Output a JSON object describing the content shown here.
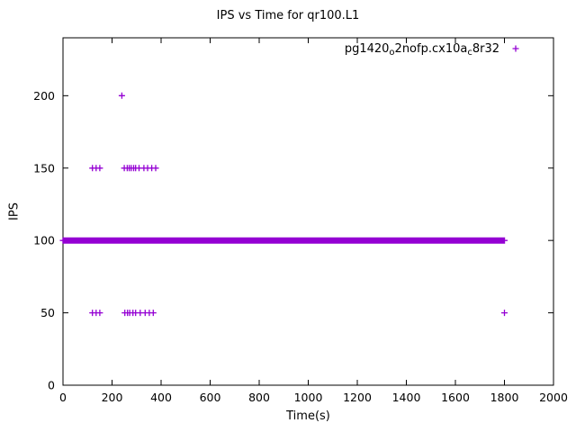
{
  "chart_data": {
    "type": "scatter",
    "title": "IPS vs Time for qr100.L1",
    "xlabel": "Time(s)",
    "ylabel": "IPS",
    "xlim": [
      0,
      2000
    ],
    "ylim": [
      0,
      240
    ],
    "xticks": [
      0,
      200,
      400,
      600,
      800,
      1000,
      1200,
      1400,
      1600,
      1800,
      2000
    ],
    "yticks": [
      0,
      50,
      100,
      150,
      200
    ],
    "grid": false,
    "marker": "plus",
    "marker_color": "#9400d3",
    "axis_color": "#000000",
    "legend": {
      "position": "top-right",
      "label_plain": "pg1420_o2nofp.cx10a_c8r32",
      "label_parts": [
        {
          "text": "pg1420",
          "sub": false
        },
        {
          "text": "o",
          "sub": true
        },
        {
          "text": "2nofp.cx10a",
          "sub": false
        },
        {
          "text": "c",
          "sub": true
        },
        {
          "text": "8r32",
          "sub": false
        }
      ]
    },
    "series": [
      {
        "name": "pg1420_o2nofp.cx10a_c8r32",
        "dense_band": {
          "y": 100,
          "x_from": 0,
          "x_to": 1800,
          "note": "continuous run of overlapping + markers at IPS=100"
        },
        "points": [
          [
            120,
            150
          ],
          [
            135,
            150
          ],
          [
            150,
            150
          ],
          [
            250,
            150
          ],
          [
            262,
            150
          ],
          [
            270,
            150
          ],
          [
            278,
            150
          ],
          [
            288,
            150
          ],
          [
            296,
            150
          ],
          [
            310,
            150
          ],
          [
            330,
            150
          ],
          [
            345,
            150
          ],
          [
            362,
            150
          ],
          [
            378,
            150
          ],
          [
            240,
            200
          ],
          [
            120,
            50
          ],
          [
            135,
            50
          ],
          [
            150,
            50
          ],
          [
            252,
            50
          ],
          [
            263,
            50
          ],
          [
            272,
            50
          ],
          [
            285,
            50
          ],
          [
            296,
            50
          ],
          [
            315,
            50
          ],
          [
            335,
            50
          ],
          [
            352,
            50
          ],
          [
            368,
            50
          ],
          [
            1800,
            50
          ]
        ]
      }
    ]
  }
}
